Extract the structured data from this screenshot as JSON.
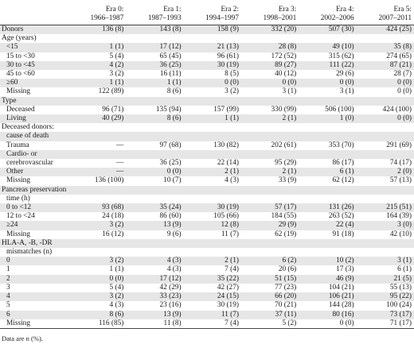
{
  "eras": [
    {
      "name": "Era 0:",
      "years": "1966–1987"
    },
    {
      "name": "Era 1:",
      "years": "1987–1993"
    },
    {
      "name": "Era 2:",
      "years": "1994–1997"
    },
    {
      "name": "Era 3:",
      "years": "1998–2001"
    },
    {
      "name": "Era 4:",
      "years": "2002–2006"
    },
    {
      "name": "Era 5:",
      "years": "2007–2011"
    }
  ],
  "rows": [
    {
      "label": "Donors",
      "indent": false,
      "values": [
        "136 (8)",
        "143 (8)",
        "158 (9)",
        "332 (20)",
        "507 (30)",
        "424 (25)"
      ]
    },
    {
      "label": "Age (years)",
      "indent": false,
      "values": [
        "",
        "",
        "",
        "",
        "",
        ""
      ]
    },
    {
      "label": "<15",
      "indent": true,
      "values": [
        "1 (1)",
        "17 (12)",
        "21 (13)",
        "28 (8)",
        "49 (10)",
        "35 (8)"
      ]
    },
    {
      "label": "15 to <30",
      "indent": true,
      "values": [
        "5 (4)",
        "65 (45)",
        "96 (61)",
        "172 (52)",
        "315 (62)",
        "274 (65)"
      ]
    },
    {
      "label": "30 to <45",
      "indent": true,
      "values": [
        "4 (2)",
        "36 (25)",
        "30 (19)",
        "89 (27)",
        "111 (22)",
        "87 (21)"
      ]
    },
    {
      "label": "45 to <60",
      "indent": true,
      "values": [
        "3 (2)",
        "16 (11)",
        "8 (5)",
        "40 (12)",
        "29 (6)",
        "28 (7)"
      ]
    },
    {
      "label": "≥60",
      "indent": true,
      "values": [
        "1 (1)",
        "1 (1)",
        "0 (0)",
        "0 (0)",
        "0 (0)",
        "0 (0)"
      ]
    },
    {
      "label": "Missing",
      "indent": true,
      "values": [
        "122 (89)",
        "8 (6)",
        "3 (2)",
        "3 (1)",
        "3 (1)",
        "0 (0)"
      ]
    },
    {
      "label": "Type",
      "indent": false,
      "values": [
        "",
        "",
        "",
        "",
        "",
        ""
      ]
    },
    {
      "label": "Deceased",
      "indent": true,
      "values": [
        "96 (71)",
        "135 (94)",
        "157 (99)",
        "330 (99)",
        "506 (100)",
        "424 (100)"
      ]
    },
    {
      "label": "Living",
      "indent": true,
      "values": [
        "40 (29)",
        "8 (6)",
        "1 (1)",
        "2 (1)",
        "1 (0)",
        "0 (0)"
      ]
    },
    {
      "label": "Deceased donors:",
      "indent": false,
      "values": [
        "",
        "",
        "",
        "",
        "",
        ""
      ]
    },
    {
      "label": "cause of death",
      "indent": true,
      "values": [
        "",
        "",
        "",
        "",
        "",
        ""
      ]
    },
    {
      "label": "Trauma",
      "indent": true,
      "values": [
        "—",
        "97 (68)",
        "130 (82)",
        "202 (61)",
        "353 (70)",
        "291 (69)"
      ]
    },
    {
      "label": "Cardio- or",
      "indent": true,
      "values": [
        "",
        "",
        "",
        "",
        "",
        ""
      ]
    },
    {
      "label": "cerebrovascular",
      "indent": true,
      "values": [
        "—",
        "36 (25)",
        "22 (14)",
        "95 (29)",
        "86 (17)",
        "74 (17)"
      ]
    },
    {
      "label": "Other",
      "indent": true,
      "values": [
        "—",
        "0 (0)",
        "2 (1)",
        "2 (1)",
        "6 (1)",
        "2 (0)"
      ]
    },
    {
      "label": "Missing",
      "indent": true,
      "values": [
        "136 (100)",
        "10 (7)",
        "4 (3)",
        "33 (9)",
        "62 (12)",
        "57 (13)"
      ]
    },
    {
      "label": "Pancreas preservation",
      "indent": false,
      "values": [
        "",
        "",
        "",
        "",
        "",
        ""
      ]
    },
    {
      "label": "time (h)",
      "indent": true,
      "values": [
        "",
        "",
        "",
        "",
        "",
        ""
      ]
    },
    {
      "label": "0 to <12",
      "indent": true,
      "values": [
        "93 (68)",
        "35 (24)",
        "30 (19)",
        "57 (17)",
        "131 (26)",
        "215 (51)"
      ]
    },
    {
      "label": "12 to <24",
      "indent": true,
      "values": [
        "24 (18)",
        "86 (60)",
        "105 (66)",
        "184 (55)",
        "263 (52)",
        "164 (39)"
      ]
    },
    {
      "label": "≥24",
      "indent": true,
      "values": [
        "3 (2)",
        "13 (9)",
        "12 (8)",
        "29 (9)",
        "22 (4)",
        "3 (0)"
      ]
    },
    {
      "label": "Missing",
      "indent": true,
      "values": [
        "16 (12)",
        "9 (6)",
        "11 (7)",
        "62 (19)",
        "91 (18)",
        "42 (10)"
      ]
    },
    {
      "label": "HLA-A, -B, -DR",
      "indent": false,
      "values": [
        "",
        "",
        "",
        "",
        "",
        ""
      ]
    },
    {
      "label": "mismatches (n)",
      "indent": true,
      "values": [
        "",
        "",
        "",
        "",
        "",
        ""
      ]
    },
    {
      "label": "0",
      "indent": true,
      "values": [
        "3 (2)",
        "4 (3)",
        "2 (1)",
        "6 (2)",
        "10 (2)",
        "3 (1)"
      ]
    },
    {
      "label": "1",
      "indent": true,
      "values": [
        "1 (1)",
        "4 (3)",
        "7 (4)",
        "20 (6)",
        "17 (3)",
        "6 (1)"
      ]
    },
    {
      "label": "2",
      "indent": true,
      "values": [
        "0 (0)",
        "17 (12)",
        "35 (22)",
        "51 (15)",
        "46 (9)",
        "21 (5)"
      ]
    },
    {
      "label": "3",
      "indent": true,
      "values": [
        "5 (4)",
        "42 (29)",
        "42 (27)",
        "77 (23)",
        "104 (21)",
        "55 (13)"
      ]
    },
    {
      "label": "4",
      "indent": true,
      "values": [
        "3 (2)",
        "33 (23)",
        "24 (15)",
        "66 (20)",
        "106 (21)",
        "95 (22)"
      ]
    },
    {
      "label": "5",
      "indent": true,
      "values": [
        "4 (3)",
        "23 (16)",
        "30 (19)",
        "70 (21)",
        "144 (28)",
        "100 (24)"
      ]
    },
    {
      "label": "6",
      "indent": true,
      "values": [
        "8 (6)",
        "13 (9)",
        "11 (7)",
        "37 (11)",
        "80 (16)",
        "73 (17)"
      ]
    },
    {
      "label": "Missing",
      "indent": true,
      "values": [
        "116 (85)",
        "11 (8)",
        "7 (4)",
        "5 (2)",
        "0 (0)",
        "71 (17)"
      ]
    }
  ],
  "footnote": "Data are n (%)."
}
